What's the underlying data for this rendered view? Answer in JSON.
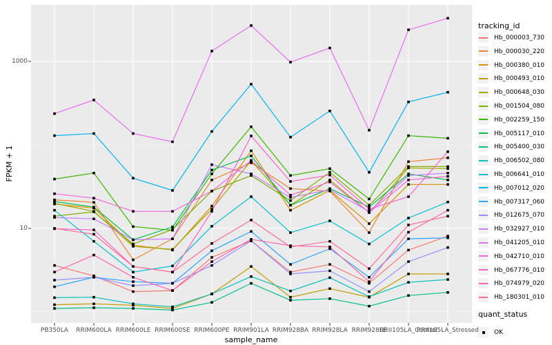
{
  "figure": {
    "y_axis": {
      "title": "FPKM + 1",
      "scale": "log10",
      "major_breaks": [
        10,
        1000
      ],
      "minor_breaks": [
        1,
        100
      ],
      "tick_labels": [
        "1000",
        "10"
      ]
    },
    "x_axis": {
      "title": "sample_name"
    },
    "legend": {
      "tracking_title": "tracking_id",
      "quant_title": "quant_status",
      "quant_items": [
        {
          "label": "OK",
          "marker": "black-square"
        }
      ]
    },
    "colors": {
      "panel_bg": "#EBEBEB",
      "grid_major": "#FFFFFF",
      "grid_minor": "#FFFFFF",
      "axis_text": "#4D4D4D",
      "tick_mark": "#333333",
      "point": "#000000",
      "legend_key_bg": "#F2F2F2"
    }
  },
  "chart_data": {
    "type": "line",
    "title": "",
    "xlabel": "sample_name",
    "ylabel": "FPKM + 1",
    "yscale": "log10",
    "ylim": [
      1,
      3500
    ],
    "grid": true,
    "legend_position": "right",
    "point_shape": "filled-square",
    "quant_status": "OK",
    "categories": [
      "PB350LA",
      "RRIM600LA",
      "RRIM600LE",
      "RRIM600SE",
      "RRIM600PE",
      "RRIM901LA",
      "RRIM928BA",
      "RRIM928LA",
      "RRIM928LE",
      "RRII105LA_Control",
      "RRII105LA_Stressed"
    ],
    "series": [
      {
        "name": "Hb_000003_730",
        "color": "#F8766D",
        "values": [
          3.6,
          2.7,
          1.75,
          1.8,
          4.5,
          7.1,
          3.0,
          3.7,
          2.2,
          5.5,
          8.1
        ]
      },
      {
        "name": "Hb_000030_220",
        "color": "#EA8331",
        "values": [
          22,
          20.5,
          4.2,
          7.5,
          38,
          61,
          30,
          28,
          8.9,
          63,
          70
        ]
      },
      {
        "name": "Hb_000380_010",
        "color": "#D89000",
        "values": [
          19.6,
          17.5,
          6.3,
          5.5,
          18.5,
          85,
          16.5,
          28.5,
          11.4,
          33.6,
          33.6
        ]
      },
      {
        "name": "Hb_000493_010",
        "color": "#C09B00",
        "values": [
          1.22,
          1.25,
          1.2,
          1.1,
          1.64,
          3.5,
          1.5,
          1.9,
          1.5,
          2.85,
          2.85
        ]
      },
      {
        "name": "Hb_000648_030",
        "color": "#A3A500",
        "values": [
          20,
          16,
          6.1,
          5.6,
          17,
          65,
          19,
          38,
          15.5,
          53,
          52
        ]
      },
      {
        "name": "Hb_001504_080",
        "color": "#7CAE00",
        "values": [
          14,
          15.8,
          6.5,
          9.7,
          28,
          43,
          21.5,
          47,
          19,
          55,
          55
        ]
      },
      {
        "name": "Hb_002259_150",
        "color": "#39B600",
        "values": [
          39,
          46,
          10.5,
          9.5,
          45,
          165,
          43,
          52,
          22.5,
          129,
          120
        ]
      },
      {
        "name": "Hb_005117_010",
        "color": "#00BB4E",
        "values": [
          21,
          18,
          7.3,
          10.4,
          50,
          74,
          18.9,
          30,
          18,
          45,
          38
        ]
      },
      {
        "name": "Hb_005400_030",
        "color": "#00C08B",
        "values": [
          1.1,
          1.12,
          1.1,
          1.05,
          1.3,
          2.2,
          1.38,
          1.44,
          1.17,
          1.57,
          1.71
        ]
      },
      {
        "name": "Hb_006502_080",
        "color": "#00C0B8",
        "values": [
          1.48,
          1.5,
          1.25,
          1.15,
          1.64,
          2.65,
          1.78,
          2.57,
          1.52,
          2.26,
          2.44
        ]
      },
      {
        "name": "Hb_006641_010",
        "color": "#00BDD2",
        "values": [
          16.5,
          7.0,
          3.0,
          3.55,
          10.6,
          24,
          8.9,
          12.3,
          6.5,
          13.3,
          20.7
        ]
      },
      {
        "name": "Hb_007012_020",
        "color": "#00B2F3",
        "values": [
          129,
          137,
          40,
          28.5,
          145,
          535,
          124,
          255,
          47,
          327,
          427
        ]
      },
      {
        "name": "Hb_007317_060",
        "color": "#29A3FF",
        "values": [
          2.0,
          2.6,
          2.3,
          2.2,
          5.4,
          9.2,
          3.7,
          5.7,
          2.6,
          7.5,
          7.7
        ]
      },
      {
        "name": "Hb_012675_070",
        "color": "#9590FF",
        "values": [
          2.4,
          2.6,
          2.06,
          2.2,
          3.6,
          7.1,
          2.85,
          3.1,
          1.75,
          4.0,
          5.9
        ]
      },
      {
        "name": "Hb_032927_010",
        "color": "#C77CFF",
        "values": [
          13.5,
          13,
          7.3,
          7.5,
          58,
          45,
          23.5,
          29,
          16,
          43,
          46
        ]
      },
      {
        "name": "Hb_041205_010",
        "color": "#E76BF3",
        "values": [
          237,
          345,
          137,
          109,
          1330,
          2690,
          980,
          1450,
          150,
          2390,
          3290
        ]
      },
      {
        "name": "Hb_042710_010",
        "color": "#FA62DB",
        "values": [
          26,
          23,
          16,
          16,
          28,
          65,
          25,
          36,
          15.5,
          38,
          42
        ]
      },
      {
        "name": "Hb_067776_010",
        "color": "#FF61C9",
        "values": [
          9.9,
          9.6,
          3.5,
          3.0,
          16,
          128,
          36.5,
          43.5,
          17,
          24,
          83
        ]
      },
      {
        "name": "Hb_074979_020",
        "color": "#FF65AC",
        "values": [
          3.0,
          4.8,
          2.6,
          1.8,
          4.0,
          7.4,
          6.2,
          6.0,
          2.3,
          9.0,
          16.5
        ]
      },
      {
        "name": "Hb_180301_010",
        "color": "#FF6A98",
        "values": [
          10,
          8.5,
          3.5,
          3.0,
          6.6,
          12.6,
          6.0,
          7.0,
          3.3,
          11,
          14
        ]
      }
    ]
  }
}
